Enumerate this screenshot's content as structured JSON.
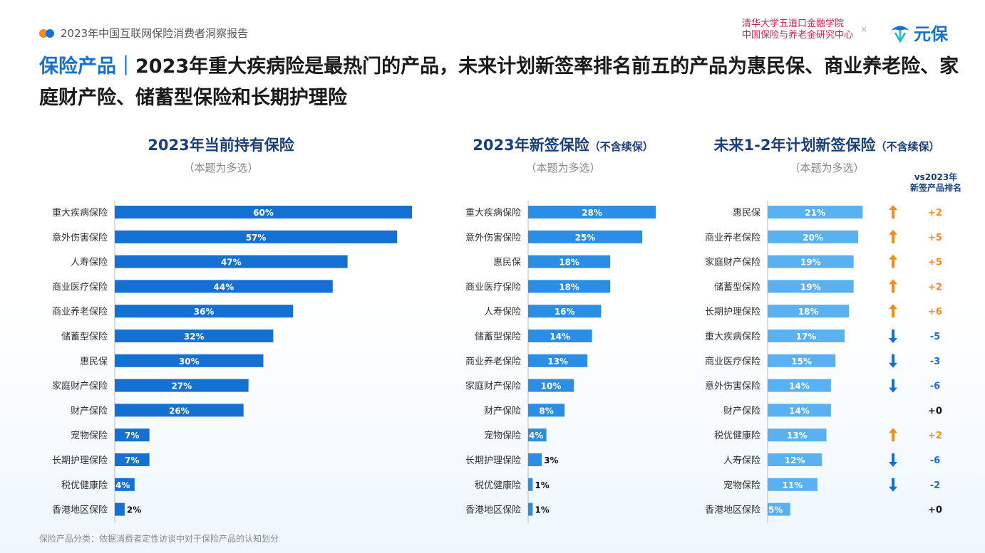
{
  "header": {
    "report_title": "2023年中国互联网保险消费者洞察报告",
    "org_line1": "清华大学五道口金融学院",
    "org_line2": "中国保险与养老金研究中心",
    "times": "×",
    "brand": "元保"
  },
  "headline": {
    "category": "保险产品｜",
    "text": "2023年重大疾病险是最热门的产品，未来计划新签率排名前五的产品为惠民保、商业养老险、家庭财产险、储蓄型保险和长期护理险"
  },
  "panels": [
    {
      "title": "2023年当前持有保险",
      "title_suffix": "",
      "subtitle": "（本题为多选）"
    },
    {
      "title": "2023年新签保险",
      "title_suffix": "（不含续保）",
      "subtitle": "（本题为多选）"
    },
    {
      "title": "未来1-2年计划新签保险",
      "title_suffix": "（不含续保）",
      "subtitle": "（本题为多选）"
    }
  ],
  "rank_header": {
    "line1": "vs2023年",
    "line2": "新签产品排名"
  },
  "footer": "保险产品分类：依据消费者定性访谈中对于保险产品的认知划分",
  "colors": {
    "panel1": "#1570d4",
    "panel2": "#2a8de6",
    "panel3": "#5ab1f1",
    "up": "#f58a1f",
    "down": "#1570d4",
    "title": "#1b3f7a"
  },
  "chart_data": [
    {
      "type": "bar",
      "orientation": "horizontal",
      "title": "2023年当前持有保险",
      "categories": [
        "重大疾病保险",
        "意外伤害保险",
        "人寿保险",
        "商业医疗保险",
        "商业养老保险",
        "储蓄型保险",
        "惠民保",
        "家庭财产保险",
        "财产保险",
        "宠物保险",
        "长期护理保险",
        "税优健康险",
        "香港地区保险"
      ],
      "values": [
        60,
        57,
        47,
        44,
        36,
        32,
        30,
        27,
        26,
        7,
        7,
        4,
        2
      ],
      "unit": "%"
    },
    {
      "type": "bar",
      "orientation": "horizontal",
      "title": "2023年新签保险（不含续保）",
      "categories": [
        "重大疾病保险",
        "意外伤害保险",
        "惠民保",
        "商业医疗保险",
        "人寿保险",
        "储蓄型保险",
        "商业养老保险",
        "家庭财产保险",
        "财产保险",
        "宠物保险",
        "长期护理保险",
        "税优健康险",
        "香港地区保险"
      ],
      "values": [
        28,
        25,
        18,
        18,
        16,
        14,
        13,
        10,
        8,
        4,
        3,
        1,
        1
      ],
      "unit": "%"
    },
    {
      "type": "bar",
      "orientation": "horizontal",
      "title": "未来1-2年计划新签保险（不含续保）",
      "categories": [
        "惠民保",
        "商业养老保险",
        "家庭财产保险",
        "储蓄型保险",
        "长期护理保险",
        "重大疾病保险",
        "商业医疗保险",
        "意外伤害保险",
        "财产保险",
        "税优健康险",
        "人寿保险",
        "宠物保险",
        "香港地区保险"
      ],
      "values": [
        21,
        20,
        19,
        19,
        18,
        17,
        15,
        14,
        14,
        13,
        12,
        11,
        5
      ],
      "unit": "%",
      "rank_change": [
        "+2",
        "+5",
        "+5",
        "+2",
        "+6",
        "-5",
        "-3",
        "-6",
        "+0",
        "+2",
        "-6",
        "-2",
        "+0"
      ],
      "rank_direction": [
        "up",
        "up",
        "up",
        "up",
        "up",
        "down",
        "down",
        "down",
        "none",
        "up",
        "down",
        "down",
        "none"
      ]
    }
  ]
}
